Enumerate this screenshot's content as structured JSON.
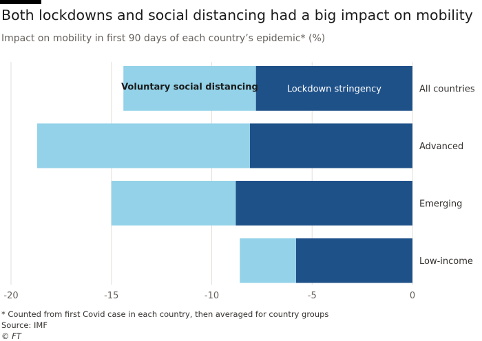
{
  "title": "Both lockdowns and social distancing had a big impact on mobility",
  "subtitle": "Impact on mobility in first 90 days of each country’s epidemic* (%)",
  "footnotes": {
    "note": "* Counted from first Covid case in each country, then averaged for country groups",
    "source": "Source: IMF",
    "credit": "© FT"
  },
  "chart_data": {
    "type": "bar",
    "orientation": "horizontal",
    "stacked": true,
    "categories": [
      "All countries",
      "Advanced",
      "Emerging",
      "Low-income"
    ],
    "series": [
      {
        "name": "Lockdown stringency",
        "values": [
          -7.8,
          -8.1,
          -8.8,
          -5.8
        ],
        "color": "#1f5189"
      },
      {
        "name": "Voluntary social distancing",
        "values": [
          -6.6,
          -10.6,
          -6.2,
          -2.8
        ],
        "color": "#93d2e8"
      }
    ],
    "xlim": [
      -20,
      0
    ],
    "xticks": [
      -20,
      -15,
      -10,
      -5,
      0
    ],
    "grid": true,
    "legend": "inside-first-bar"
  }
}
